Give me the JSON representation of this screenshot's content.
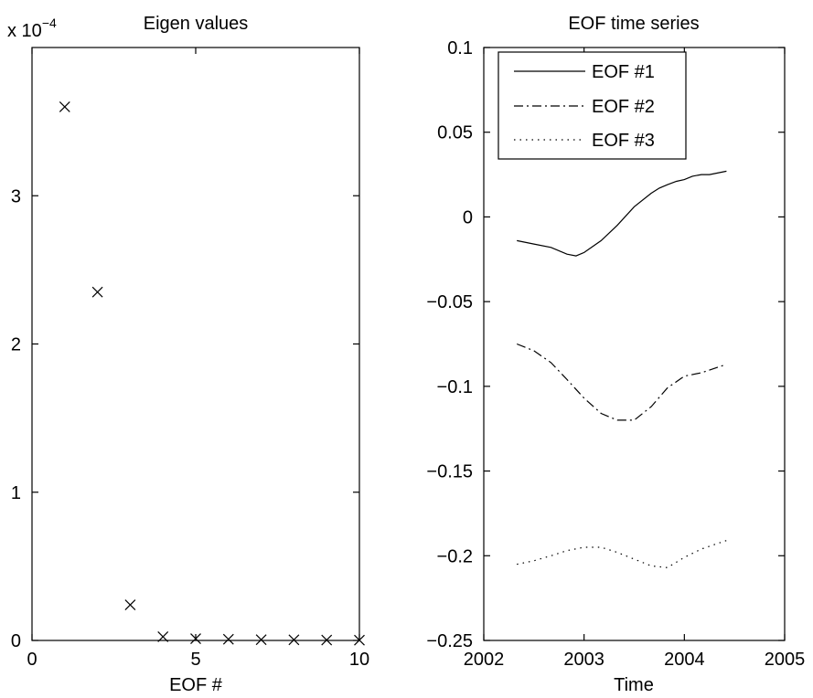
{
  "chart_data": [
    {
      "type": "scatter",
      "title": "Eigen values",
      "xlabel": "EOF #",
      "ylabel": "",
      "scale_label": "x 10",
      "scale_exponent": "−4",
      "xlim": [
        0,
        10
      ],
      "ylim": [
        0,
        4
      ],
      "xticks": [
        0,
        5,
        10
      ],
      "xtick_labels": [
        "0",
        "5",
        "10"
      ],
      "yticks": [
        0,
        1,
        2,
        3
      ],
      "ytick_labels": [
        "0",
        "1",
        "2",
        "3"
      ],
      "marker": "x",
      "grid": false,
      "x": [
        1,
        2,
        3,
        4,
        5,
        6,
        7,
        8,
        9,
        10
      ],
      "y": [
        3.6,
        2.35,
        0.24,
        0.025,
        0.012,
        0.008,
        0.005,
        0.004,
        0.003,
        0.002
      ]
    },
    {
      "type": "line",
      "title": "EOF time series",
      "xlabel": "Time",
      "ylabel": "",
      "xlim": [
        2002,
        2005
      ],
      "ylim": [
        -0.25,
        0.1
      ],
      "xticks": [
        2002,
        2003,
        2004,
        2005
      ],
      "xtick_labels": [
        "2002",
        "2003",
        "2004",
        "2005"
      ],
      "yticks": [
        -0.25,
        -0.2,
        -0.15,
        -0.1,
        -0.05,
        0,
        0.05,
        0.1
      ],
      "ytick_labels": [
        "−0.25",
        "−0.2",
        "−0.15",
        "−0.1",
        "−0.05",
        "0",
        "0.05",
        "0.1"
      ],
      "grid": false,
      "legend_position": "top-center",
      "series": [
        {
          "name": "EOF #1",
          "style": "solid",
          "x": [
            2002.33,
            2002.5,
            2002.67,
            2002.83,
            2002.92,
            2003.0,
            2003.17,
            2003.33,
            2003.5,
            2003.67,
            2003.75,
            2003.83,
            2003.92,
            2004.0,
            2004.08,
            2004.17,
            2004.25,
            2004.42
          ],
          "y": [
            -0.014,
            -0.016,
            -0.018,
            -0.022,
            -0.023,
            -0.021,
            -0.014,
            -0.005,
            0.006,
            0.014,
            0.017,
            0.019,
            0.021,
            0.022,
            0.024,
            0.025,
            0.025,
            0.027
          ]
        },
        {
          "name": "EOF #2",
          "style": "dash-dot",
          "x": [
            2002.33,
            2002.5,
            2002.67,
            2002.83,
            2003.0,
            2003.17,
            2003.33,
            2003.5,
            2003.67,
            2003.83,
            2004.0,
            2004.17,
            2004.42
          ],
          "y": [
            -0.075,
            -0.079,
            -0.086,
            -0.096,
            -0.107,
            -0.116,
            -0.12,
            -0.12,
            -0.112,
            -0.101,
            -0.094,
            -0.092,
            -0.087
          ]
        },
        {
          "name": "EOF #3",
          "style": "dotted",
          "x": [
            2002.33,
            2002.5,
            2002.67,
            2002.83,
            2003.0,
            2003.17,
            2003.33,
            2003.5,
            2003.67,
            2003.83,
            2004.0,
            2004.17,
            2004.42
          ],
          "y": [
            -0.205,
            -0.203,
            -0.2,
            -0.197,
            -0.195,
            -0.195,
            -0.198,
            -0.202,
            -0.206,
            -0.207,
            -0.201,
            -0.196,
            -0.191
          ]
        }
      ]
    }
  ],
  "colors": {
    "ink": "#000000",
    "background": "#ffffff"
  }
}
